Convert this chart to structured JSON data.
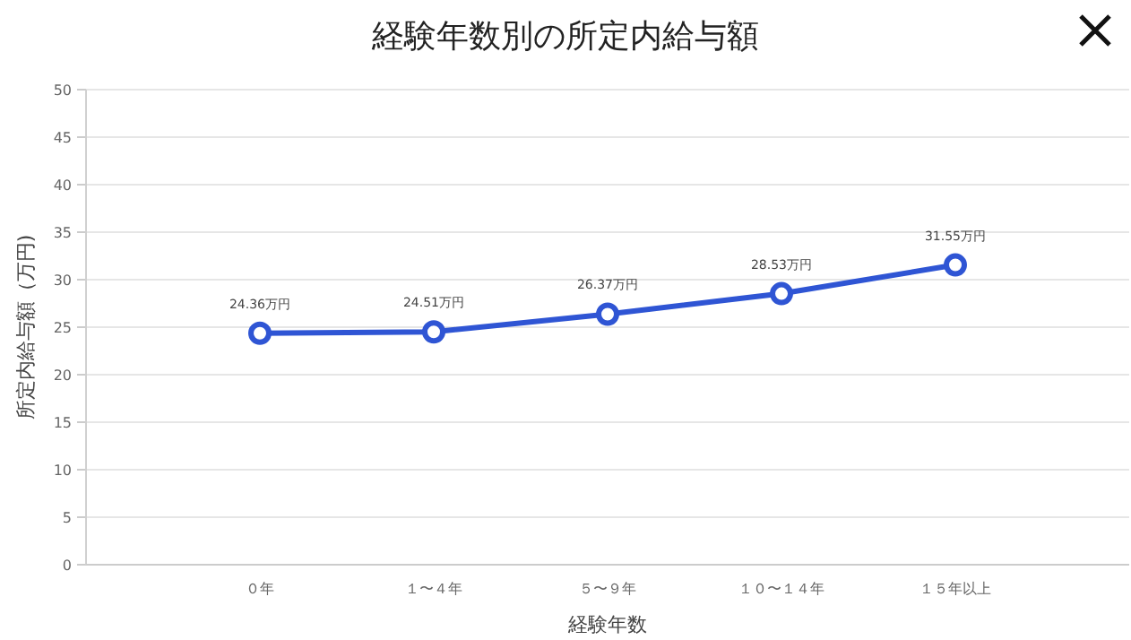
{
  "chart_data": {
    "type": "line",
    "title": "経験年数別の所定内給与額",
    "xlabel": "経験年数",
    "ylabel": "所定内給与額（万円)",
    "categories": [
      "０年",
      "１〜４年",
      "５〜９年",
      "１０〜１４年",
      "１５年以上"
    ],
    "series": [
      {
        "color": "#2f55d4",
        "values": [
          24.36,
          24.51,
          26.37,
          28.53,
          31.55
        ],
        "value_labels": [
          "24.36万円",
          "24.51万円",
          "26.37万円",
          "28.53万円",
          "31.55万円"
        ]
      }
    ],
    "ylim": [
      0,
      50
    ],
    "yticks": [
      0,
      5,
      10,
      15,
      20,
      25,
      30,
      35,
      40,
      45,
      50
    ],
    "grid": "y",
    "marker": "circle",
    "line_style": "solid"
  }
}
